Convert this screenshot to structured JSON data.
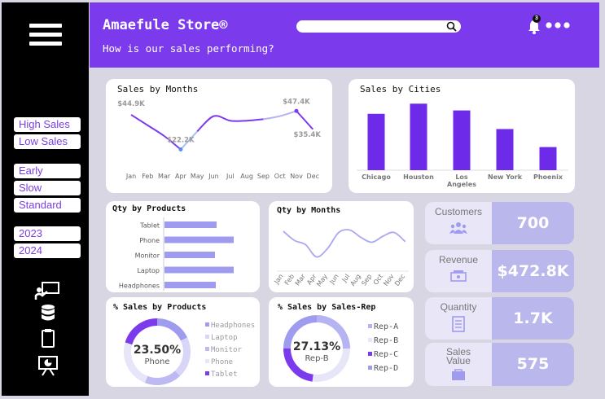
{
  "header": {
    "title": "Amaefule Store®",
    "subtitle": "How is our sales performing?",
    "notification_count": "3"
  },
  "search": {
    "placeholder": ""
  },
  "sidebar": {
    "filters": [
      {
        "label": "High Sales"
      },
      {
        "label": "Low Sales"
      },
      {
        "label": "Early"
      },
      {
        "label": "Slow"
      },
      {
        "label": "Standard"
      },
      {
        "label": "2023"
      },
      {
        "label": "2024"
      }
    ],
    "icons": [
      "presentation-icon",
      "database-icon",
      "clipboard-icon",
      "chart-board-icon"
    ]
  },
  "colors": {
    "purple": "#7c3aed",
    "bar": "#6d2ae8",
    "light_bar": "#9f9cf0",
    "kpi_value_bg": "#b9b7ec",
    "kpi_label_bg": "#e9e6f7",
    "sidebar": "#000000"
  },
  "cards": {
    "sales_by_months": "Sales by Months",
    "sales_by_cities": "Sales by Cities",
    "qty_by_products": "Qty by Products",
    "qty_by_months": "Qty by Months",
    "pct_sales_by_products": "% Sales by Products",
    "pct_sales_by_rep": "% Sales by Sales-Rep"
  },
  "kpis": [
    {
      "label": "Customers",
      "value": "700"
    },
    {
      "label": "Revenue",
      "value": "$472.8K"
    },
    {
      "label": "Quantity",
      "value": "1.7K"
    },
    {
      "label": "Sales Value",
      "value": "575"
    }
  ],
  "chart_data": [
    {
      "type": "line",
      "title": "Sales by Months",
      "categories": [
        "Jan",
        "Feb",
        "Mar",
        "Apr",
        "May",
        "Jun",
        "Jul",
        "Aug",
        "Sep",
        "Oct",
        "Nov",
        "Dec"
      ],
      "values": [
        44.9,
        38,
        31,
        22.2,
        34,
        44,
        41,
        41,
        42,
        44,
        47.4,
        35.4
      ],
      "data_labels": [
        {
          "category": "Jan",
          "text": "$44.9K"
        },
        {
          "category": "Apr",
          "text": "$22.2K"
        },
        {
          "category": "Nov",
          "text": "$47.4K"
        },
        {
          "category": "Dec",
          "text": "$35.4K"
        }
      ],
      "ylim": [
        15,
        55
      ]
    },
    {
      "type": "bar",
      "title": "Sales by Cities",
      "categories": [
        "Chicago",
        "Houston",
        "Los Angeles",
        "New York",
        "Phoenix"
      ],
      "values": [
        100,
        118,
        106,
        73,
        41
      ],
      "ylim": [
        0,
        130
      ]
    },
    {
      "type": "bar",
      "orientation": "horizontal",
      "title": "Qty by Products",
      "categories": [
        "Tablet",
        "Phone",
        "Monitor",
        "Laptop",
        "Headphones"
      ],
      "values": [
        64,
        85,
        62,
        85,
        63
      ],
      "xlim": [
        0,
        100
      ]
    },
    {
      "type": "line",
      "title": "Qty by Months",
      "categories": [
        "Jan",
        "Feb",
        "Mar",
        "Apr",
        "May",
        "Jun",
        "Jul",
        "Aug",
        "Sep",
        "Oct",
        "Nov",
        "Dec"
      ],
      "values": [
        150,
        135,
        128,
        108,
        122,
        148,
        152,
        140,
        132,
        142,
        148,
        133
      ],
      "ylim": [
        90,
        170
      ]
    },
    {
      "type": "pie",
      "title": "% Sales by Products",
      "center_value": "23.50%",
      "center_label": "Phone",
      "categories": [
        "Headphones",
        "Laptop",
        "Monitor",
        "Phone",
        "Tablet"
      ],
      "values": [
        18,
        20,
        18,
        23.5,
        20.5
      ],
      "colors": [
        "#9f9cf0",
        "#d8d6f6",
        "#bcb9f3",
        "#e7e6f8",
        "#7c3aed"
      ]
    },
    {
      "type": "pie",
      "title": "% Sales by Sales-Rep",
      "center_value": "27.13%",
      "center_label": "Rep-B",
      "categories": [
        "Rep-A",
        "Rep-B",
        "Rep-C",
        "Rep-D"
      ],
      "values": [
        25,
        27.13,
        22.87,
        25
      ],
      "colors": [
        "#b6b3f2",
        "#e7e6f8",
        "#7c3aed",
        "#9f9cf0"
      ]
    }
  ]
}
